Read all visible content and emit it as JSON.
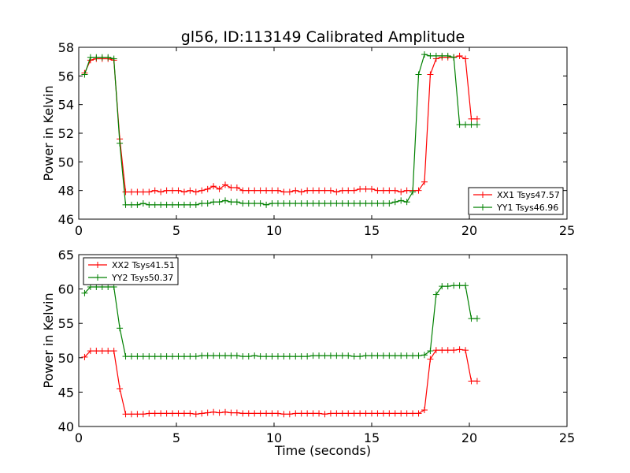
{
  "title": "gl56, ID:113149 Calibrated Amplitude",
  "xlabel": "Time (seconds)",
  "colors": {
    "red": "#ff0000",
    "green": "#008000"
  },
  "chart_data": [
    {
      "type": "line",
      "title": "gl56, ID:113149 Calibrated Amplitude",
      "xlabel": "",
      "ylabel": "Power in Kelvin",
      "xlim": [
        0,
        25
      ],
      "ylim": [
        46,
        58
      ],
      "xticks": [
        0,
        5,
        10,
        15,
        20,
        25
      ],
      "yticks": [
        46,
        48,
        50,
        52,
        54,
        56,
        58
      ],
      "grid": false,
      "legend_position": "lower-right",
      "x": [
        0.3,
        0.6,
        0.9,
        1.2,
        1.5,
        1.8,
        2.1,
        2.4,
        2.7,
        3.0,
        3.3,
        3.6,
        3.9,
        4.2,
        4.5,
        4.8,
        5.1,
        5.4,
        5.7,
        6.0,
        6.3,
        6.6,
        6.9,
        7.2,
        7.5,
        7.8,
        8.1,
        8.4,
        8.7,
        9.0,
        9.3,
        9.6,
        9.9,
        10.2,
        10.5,
        10.8,
        11.1,
        11.4,
        11.7,
        12.0,
        12.3,
        12.6,
        12.9,
        13.2,
        13.5,
        13.8,
        14.1,
        14.4,
        14.7,
        15.0,
        15.3,
        15.6,
        15.9,
        16.2,
        16.5,
        16.8,
        17.1,
        17.4,
        17.7,
        18.0,
        18.3,
        18.6,
        18.9,
        19.2,
        19.5,
        19.8,
        20.1,
        20.4
      ],
      "series": [
        {
          "name": "XX1 Tsys47.57",
          "color": "#ff0000",
          "values": [
            56.2,
            57.1,
            57.2,
            57.2,
            57.2,
            57.1,
            51.6,
            47.9,
            47.9,
            47.9,
            47.9,
            47.9,
            48.0,
            47.9,
            48.0,
            48.0,
            48.0,
            47.9,
            48.0,
            47.9,
            48.0,
            48.1,
            48.3,
            48.1,
            48.4,
            48.2,
            48.2,
            48.0,
            48.0,
            48.0,
            48.0,
            48.0,
            48.0,
            48.0,
            47.9,
            47.9,
            48.0,
            47.9,
            48.0,
            48.0,
            48.0,
            48.0,
            48.0,
            47.9,
            48.0,
            48.0,
            48.0,
            48.1,
            48.1,
            48.1,
            48.0,
            48.0,
            48.0,
            48.0,
            47.9,
            48.0,
            48.0,
            48.0,
            48.6,
            56.1,
            57.2,
            57.3,
            57.3,
            57.3,
            57.4,
            57.2,
            53.0,
            53.0
          ]
        },
        {
          "name": "YY1 Tsys46.96",
          "color": "#008000",
          "values": [
            56.1,
            57.3,
            57.3,
            57.3,
            57.3,
            57.2,
            51.3,
            47.0,
            47.0,
            47.0,
            47.1,
            47.0,
            47.0,
            47.0,
            47.0,
            47.0,
            47.0,
            47.0,
            47.0,
            47.0,
            47.1,
            47.1,
            47.2,
            47.2,
            47.3,
            47.2,
            47.2,
            47.1,
            47.1,
            47.1,
            47.1,
            47.0,
            47.1,
            47.1,
            47.1,
            47.1,
            47.1,
            47.1,
            47.1,
            47.1,
            47.1,
            47.1,
            47.1,
            47.1,
            47.1,
            47.1,
            47.1,
            47.1,
            47.1,
            47.1,
            47.1,
            47.1,
            47.1,
            47.2,
            47.3,
            47.2,
            47.9,
            56.1,
            57.5,
            57.4,
            57.4,
            57.4,
            57.4,
            57.3,
            52.6,
            52.6,
            52.6,
            52.6
          ]
        }
      ]
    },
    {
      "type": "line",
      "title": "",
      "xlabel": "Time (seconds)",
      "ylabel": "Power in Kelvin",
      "xlim": [
        0,
        25
      ],
      "ylim": [
        40,
        65
      ],
      "xticks": [
        0,
        5,
        10,
        15,
        20,
        25
      ],
      "yticks": [
        40,
        45,
        50,
        55,
        60,
        65
      ],
      "grid": false,
      "legend_position": "upper-left",
      "x": [
        0.3,
        0.6,
        0.9,
        1.2,
        1.5,
        1.8,
        2.1,
        2.4,
        2.7,
        3.0,
        3.3,
        3.6,
        3.9,
        4.2,
        4.5,
        4.8,
        5.1,
        5.4,
        5.7,
        6.0,
        6.3,
        6.6,
        6.9,
        7.2,
        7.5,
        7.8,
        8.1,
        8.4,
        8.7,
        9.0,
        9.3,
        9.6,
        9.9,
        10.2,
        10.5,
        10.8,
        11.1,
        11.4,
        11.7,
        12.0,
        12.3,
        12.6,
        12.9,
        13.2,
        13.5,
        13.8,
        14.1,
        14.4,
        14.7,
        15.0,
        15.3,
        15.6,
        15.9,
        16.2,
        16.5,
        16.8,
        17.1,
        17.4,
        17.7,
        18.0,
        18.3,
        18.6,
        18.9,
        19.2,
        19.5,
        19.8,
        20.1,
        20.4
      ],
      "series": [
        {
          "name": "XX2 Tsys41.51",
          "color": "#ff0000",
          "values": [
            50.1,
            51.0,
            51.0,
            51.0,
            51.0,
            51.0,
            45.5,
            41.8,
            41.8,
            41.8,
            41.8,
            41.9,
            41.9,
            41.9,
            41.9,
            41.9,
            41.9,
            41.9,
            41.9,
            41.8,
            41.9,
            42.0,
            42.1,
            42.0,
            42.1,
            42.0,
            42.0,
            41.9,
            41.9,
            41.9,
            41.9,
            41.9,
            41.9,
            41.9,
            41.8,
            41.8,
            41.9,
            41.9,
            41.9,
            41.9,
            41.9,
            41.8,
            41.9,
            41.9,
            41.9,
            41.9,
            41.9,
            41.9,
            41.9,
            41.9,
            41.9,
            41.9,
            41.9,
            41.9,
            41.9,
            41.9,
            41.9,
            41.9,
            42.4,
            49.8,
            51.1,
            51.1,
            51.1,
            51.1,
            51.2,
            51.1,
            46.6,
            46.6
          ]
        },
        {
          "name": "YY2 Tsys50.37",
          "color": "#008000",
          "values": [
            59.4,
            60.3,
            60.3,
            60.3,
            60.3,
            60.3,
            54.3,
            50.2,
            50.2,
            50.2,
            50.2,
            50.2,
            50.2,
            50.2,
            50.2,
            50.2,
            50.2,
            50.2,
            50.2,
            50.2,
            50.3,
            50.3,
            50.3,
            50.3,
            50.3,
            50.3,
            50.3,
            50.2,
            50.2,
            50.3,
            50.2,
            50.2,
            50.2,
            50.2,
            50.2,
            50.2,
            50.2,
            50.2,
            50.2,
            50.3,
            50.3,
            50.3,
            50.3,
            50.3,
            50.3,
            50.3,
            50.2,
            50.2,
            50.3,
            50.3,
            50.3,
            50.3,
            50.3,
            50.3,
            50.3,
            50.3,
            50.3,
            50.3,
            50.4,
            51.0,
            59.2,
            60.4,
            60.4,
            60.5,
            60.5,
            60.5,
            55.7,
            55.7
          ]
        }
      ]
    }
  ]
}
